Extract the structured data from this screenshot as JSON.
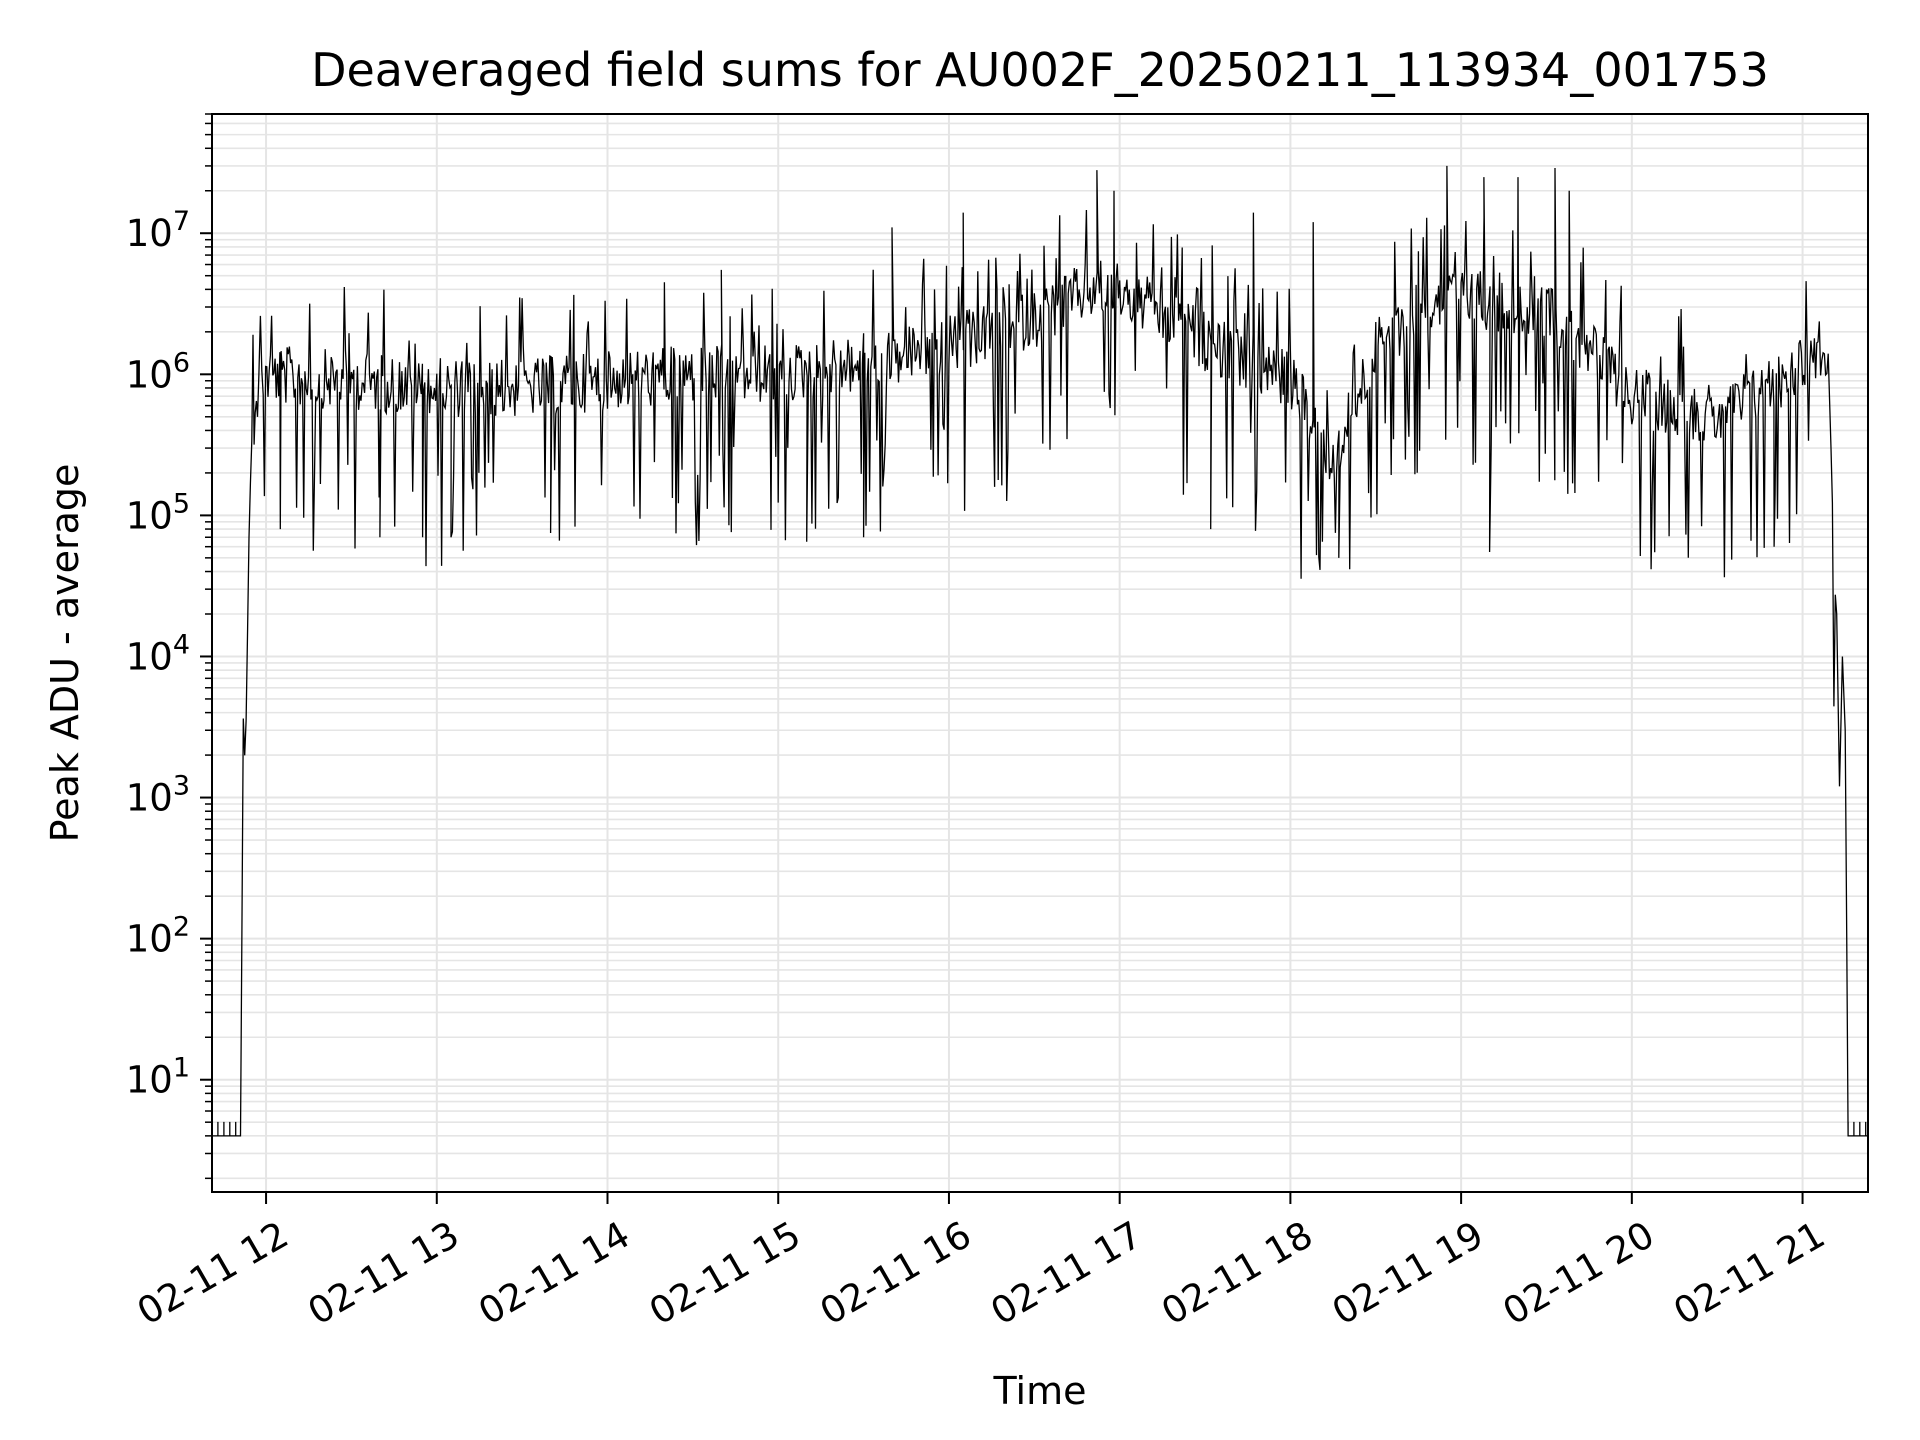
{
  "chart_data": {
    "type": "line",
    "title": "Deaveraged field sums for AU002F_20250211_113934_001753",
    "xlabel": "Time",
    "ylabel": "Peak ADU - average",
    "yscale": "log",
    "ylim": [
      1.6,
      70000000
    ],
    "xlim": [
      "2025-02-11 11:41",
      "2025-02-11 21:23"
    ],
    "grid": true,
    "color": "#000000",
    "grid_color": "#e5e5e5",
    "x_ticks": [
      {
        "t": "2025-02-11 12:00",
        "label": "02-11 12"
      },
      {
        "t": "2025-02-11 13:00",
        "label": "02-11 13"
      },
      {
        "t": "2025-02-11 14:00",
        "label": "02-11 14"
      },
      {
        "t": "2025-02-11 15:00",
        "label": "02-11 15"
      },
      {
        "t": "2025-02-11 16:00",
        "label": "02-11 16"
      },
      {
        "t": "2025-02-11 17:00",
        "label": "02-11 17"
      },
      {
        "t": "2025-02-11 18:00",
        "label": "02-11 18"
      },
      {
        "t": "2025-02-11 19:00",
        "label": "02-11 19"
      },
      {
        "t": "2025-02-11 20:00",
        "label": "02-11 20"
      },
      {
        "t": "2025-02-11 21:00",
        "label": "02-11 21"
      }
    ],
    "y_ticks": [
      {
        "value": 10,
        "base": "10",
        "exp": "1"
      },
      {
        "value": 100,
        "base": "10",
        "exp": "2"
      },
      {
        "value": 1000,
        "base": "10",
        "exp": "3"
      },
      {
        "value": 10000,
        "base": "10",
        "exp": "4"
      },
      {
        "value": 100000,
        "base": "10",
        "exp": "5"
      },
      {
        "value": 1000000,
        "base": "10",
        "exp": "6"
      },
      {
        "value": 10000000,
        "base": "10",
        "exp": "7"
      }
    ],
    "series": [
      {
        "points": [
          [
            "2025-02-11 11:41",
            4
          ],
          [
            "2025-02-11 11:51",
            4
          ],
          [
            "2025-02-11 11:52",
            3000
          ],
          [
            "2025-02-11 11:53",
            3500
          ],
          [
            "2025-02-11 11:54",
            70000
          ],
          [
            "2025-02-11 11:55",
            400000
          ],
          [
            "2025-02-11 11:57",
            500000
          ],
          [
            "2025-02-11 11:58",
            2000000
          ],
          [
            "2025-02-11 11:59",
            1000000
          ],
          [
            "2025-02-11 12:30",
            900000
          ],
          [
            "2025-02-11 13:00",
            800000
          ],
          [
            "2025-02-11 13:30",
            800000
          ],
          [
            "2025-02-11 14:00",
            900000
          ],
          [
            "2025-02-11 14:30",
            1000000
          ],
          [
            "2025-02-11 15:00",
            1000000
          ],
          [
            "2025-02-11 15:30",
            1200000
          ],
          [
            "2025-02-11 16:00",
            1600000
          ],
          [
            "2025-02-11 16:30",
            2500000
          ],
          [
            "2025-02-11 16:50",
            4000000
          ],
          [
            "2025-02-11 17:00",
            4000000
          ],
          [
            "2025-02-11 17:30",
            1700000
          ],
          [
            "2025-02-11 18:00",
            900000
          ],
          [
            "2025-02-11 18:15",
            250000
          ],
          [
            "2025-02-11 18:30",
            1500000
          ],
          [
            "2025-02-11 18:45",
            3000000
          ],
          [
            "2025-02-11 19:00",
            3500000
          ],
          [
            "2025-02-11 19:30",
            3000000
          ],
          [
            "2025-02-11 19:45",
            1500000
          ],
          [
            "2025-02-11 20:00",
            700000
          ],
          [
            "2025-02-11 20:30",
            500000
          ],
          [
            "2025-02-11 20:55",
            1000000
          ],
          [
            "2025-02-11 21:05",
            1500000
          ],
          [
            "2025-02-11 21:09",
            1400000
          ],
          [
            "2025-02-11 21:10",
            300000
          ],
          [
            "2025-02-11 21:11",
            50000
          ],
          [
            "2025-02-11 21:12",
            20000
          ],
          [
            "2025-02-11 21:13",
            1200
          ],
          [
            "2025-02-11 21:14",
            10000
          ],
          [
            "2025-02-11 21:15",
            3000
          ],
          [
            "2025-02-11 21:16",
            4
          ],
          [
            "2025-02-11 21:23",
            4
          ]
        ],
        "spikes_up": [
          [
            "2025-02-11 14:20",
            4500000
          ],
          [
            "2025-02-11 14:40",
            5500000
          ],
          [
            "2025-02-11 15:40",
            11000000
          ],
          [
            "2025-02-11 16:05",
            14000000
          ],
          [
            "2025-02-11 16:52",
            28000000
          ],
          [
            "2025-02-11 16:58",
            20000000
          ],
          [
            "2025-02-11 17:15",
            16000000
          ],
          [
            "2025-02-11 17:47",
            14000000
          ],
          [
            "2025-02-11 18:08",
            12000000
          ],
          [
            "2025-02-11 18:55",
            30000000
          ],
          [
            "2025-02-11 19:08",
            25000000
          ],
          [
            "2025-02-11 19:20",
            25000000
          ],
          [
            "2025-02-11 19:33",
            29000000
          ],
          [
            "2025-02-11 19:38",
            20000000
          ],
          [
            "2025-02-11 21:07",
            4500000
          ]
        ],
        "spikes_down": [
          [
            "2025-02-11 12:05",
            80000
          ],
          [
            "2025-02-11 12:40",
            70000
          ],
          [
            "2025-02-11 12:55",
            70000
          ],
          [
            "2025-02-11 13:05",
            70000
          ],
          [
            "2025-02-11 13:40",
            75000
          ],
          [
            "2025-02-11 15:10",
            65000
          ],
          [
            "2025-02-11 15:30",
            70000
          ],
          [
            "2025-02-11 17:32",
            80000
          ],
          [
            "2025-02-11 18:17",
            50000
          ],
          [
            "2025-02-11 19:10",
            55000
          ],
          [
            "2025-02-11 20:50",
            60000
          ]
        ]
      }
    ]
  }
}
